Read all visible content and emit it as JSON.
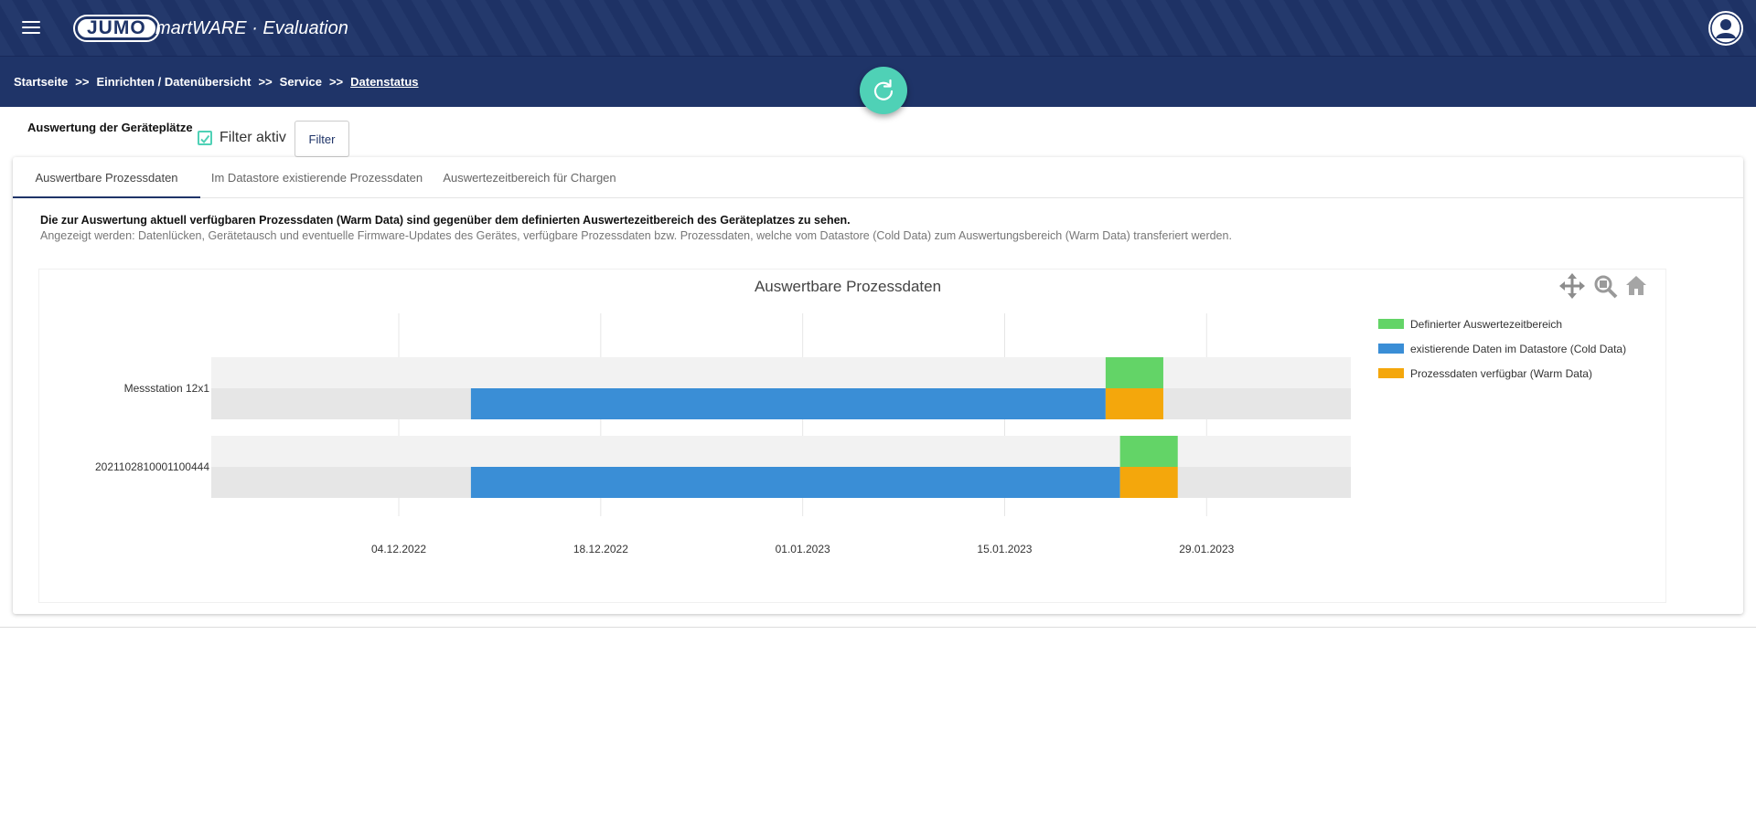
{
  "header": {
    "logo": "JUMO",
    "product": "smartWARE · Evaluation"
  },
  "breadcrumb": {
    "items": [
      "Startseite",
      "Einrichten / Datenübersicht",
      "Service"
    ],
    "current": "Datenstatus",
    "separator": ">>"
  },
  "filter": {
    "title": "Auswertung der Geräteplätze",
    "checkbox_label": "Filter aktiv",
    "checkbox_checked": true,
    "button_label": "Filter"
  },
  "tabs": [
    {
      "label": "Auswertbare Prozessdaten",
      "active": true
    },
    {
      "label": "Im Datastore existierende Prozessdaten",
      "active": false
    },
    {
      "label": "Auswertezeitbereich für Chargen",
      "active": false
    }
  ],
  "description": {
    "line1": "Die zur Auswertung aktuell verfügbaren Prozessdaten (Warm Data) sind gegenüber dem definierten Auswertezeitbereich des Geräteplatzes zu sehen.",
    "line2": "Angezeigt werden: Datenlücken, Gerätetausch und eventuelle Firmware-Updates des Gerätes, verfügbare Prozessdaten bzw. Prozessdaten, welche vom Datastore (Cold Data) zum Auswertungsbereich (Warm Data) transferiert werden."
  },
  "toolbar_icons": [
    "pan-icon",
    "zoom-icon",
    "home-icon"
  ],
  "colors": {
    "header_bg": "#1f3468",
    "accent": "#4fd1b6",
    "green": "#63d467",
    "blue": "#3a8ed6",
    "orange": "#f4a70c"
  },
  "chart_data": {
    "type": "bar",
    "orientation": "horizontal-timeline",
    "title": "Auswertbare Prozessdaten",
    "categories": [
      "Messstation 12x1",
      "2021102810001100444"
    ],
    "x_ticks": [
      "04.12.2022",
      "18.12.2022",
      "01.01.2023",
      "15.01.2023",
      "29.01.2023"
    ],
    "xlim": [
      "2022-11-21",
      "2023-02-08"
    ],
    "grid": true,
    "legend_position": "right",
    "series": [
      {
        "name": "Definierter Auswertezeitbereich",
        "color": "#63d467",
        "ranges": [
          [
            "2023-01-22",
            "2023-01-26"
          ],
          [
            "2023-01-23",
            "2023-01-27"
          ]
        ]
      },
      {
        "name": "existierende Daten im Datastore (Cold Data)",
        "color": "#3a8ed6",
        "ranges": [
          [
            "2022-12-09",
            "2023-01-22"
          ],
          [
            "2022-12-09",
            "2023-01-23"
          ]
        ]
      },
      {
        "name": "Prozessdaten verfügbar (Warm Data)",
        "color": "#f4a70c",
        "ranges": [
          [
            "2023-01-22",
            "2023-01-26"
          ],
          [
            "2023-01-23",
            "2023-01-27"
          ]
        ]
      }
    ]
  }
}
